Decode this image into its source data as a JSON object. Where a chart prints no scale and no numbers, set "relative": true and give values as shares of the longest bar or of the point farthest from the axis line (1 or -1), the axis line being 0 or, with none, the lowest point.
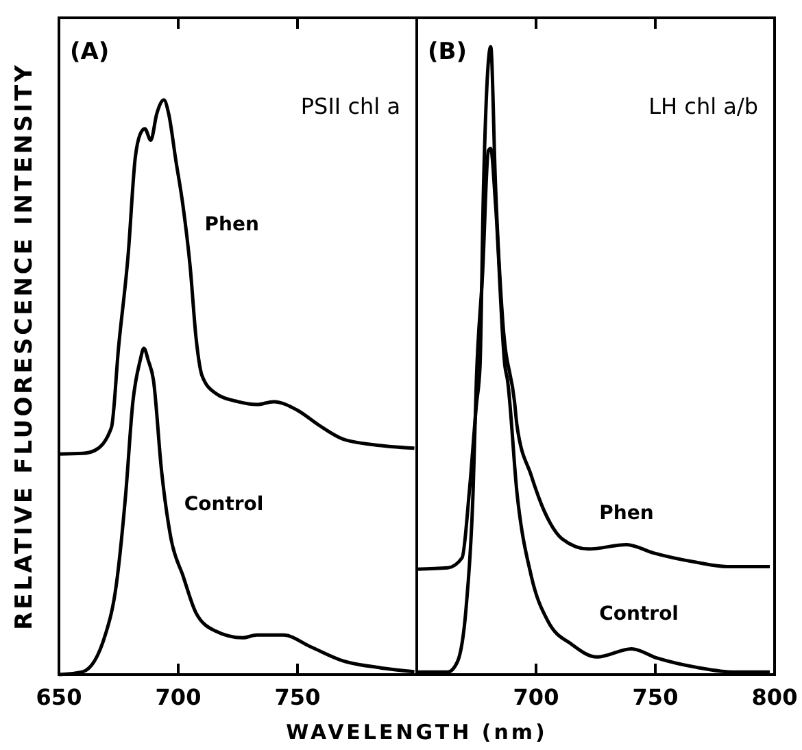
{
  "chart_data": [
    {
      "type": "line",
      "relative": true,
      "ylabel": "RELATIVE FLUORESCENCE INTENSITY",
      "xlabel": "WAVELENGTH (nm)",
      "annotations": [
        "(A)",
        "PSII chl a"
      ],
      "xlim": [
        650,
        800
      ],
      "xticks": [
        650,
        700,
        750
      ],
      "series": [
        {
          "name": "Phen",
          "color": "#000000",
          "x": [
            650,
            660,
            665,
            672,
            675,
            679,
            682,
            684,
            686,
            688.5,
            691,
            694,
            696,
            699,
            702,
            705,
            707.5,
            710,
            715.5,
            725,
            733,
            740,
            750,
            759,
            769,
            782,
            799
          ],
          "values": [
            0.384,
            0.385,
            0.39,
            0.43,
            0.57,
            0.73,
            0.9,
            0.94,
            0.95,
            0.93,
            0.976,
            1.0,
            0.976,
            0.895,
            0.816,
            0.71,
            0.585,
            0.52,
            0.49,
            0.475,
            0.47,
            0.475,
            0.46,
            0.434,
            0.41,
            0.4,
            0.394
          ]
        },
        {
          "name": "Control",
          "color": "#000000",
          "x": [
            650,
            660,
            669.5,
            674,
            678,
            681,
            684,
            685.6,
            687.5,
            689.6,
            693,
            697,
            702,
            707.5,
            715.5,
            727,
            733,
            744,
            755.7,
            769,
            784.5,
            799
          ],
          "values": [
            0,
            0.005,
            0.07,
            0.155,
            0.315,
            0.475,
            0.546,
            0.568,
            0.546,
            0.513,
            0.355,
            0.236,
            0.172,
            0.107,
            0.076,
            0.064,
            0.069,
            0.069,
            0.048,
            0.024,
            0.012,
            0.005
          ]
        }
      ]
    },
    {
      "type": "line",
      "relative": true,
      "annotations": [
        "(B)",
        "LH chl a/b"
      ],
      "xlim": [
        650,
        800
      ],
      "xticks": [
        700,
        750,
        800
      ],
      "series": [
        {
          "name": "Phen",
          "color": "#000000",
          "x": [
            650,
            663,
            669,
            672,
            675,
            676.5,
            678,
            681,
            683,
            686,
            691,
            692,
            698,
            703.5,
            711,
            722,
            738,
            749,
            767,
            780,
            798
          ],
          "values": [
            0.168,
            0.17,
            0.186,
            0.29,
            0.43,
            0.49,
            0.78,
            1.0,
            0.78,
            0.565,
            0.434,
            0.397,
            0.317,
            0.26,
            0.216,
            0.2,
            0.207,
            0.194,
            0.179,
            0.172,
            0.172
          ]
        },
        {
          "name": "Control",
          "color": "#000000",
          "x": [
            650,
            663,
            667,
            670.7,
            673.6,
            675,
            677.6,
            680,
            681,
            683,
            687,
            688,
            692,
            698,
            705,
            715,
            725.6,
            740,
            751,
            768,
            783,
            798
          ],
          "values": [
            0.004,
            0.004,
            0.02,
            0.107,
            0.29,
            0.47,
            0.64,
            0.834,
            0.838,
            0.75,
            0.49,
            0.47,
            0.29,
            0.157,
            0.085,
            0.048,
            0.028,
            0.041,
            0.026,
            0.011,
            0.004,
            0.004
          ]
        }
      ]
    }
  ]
}
